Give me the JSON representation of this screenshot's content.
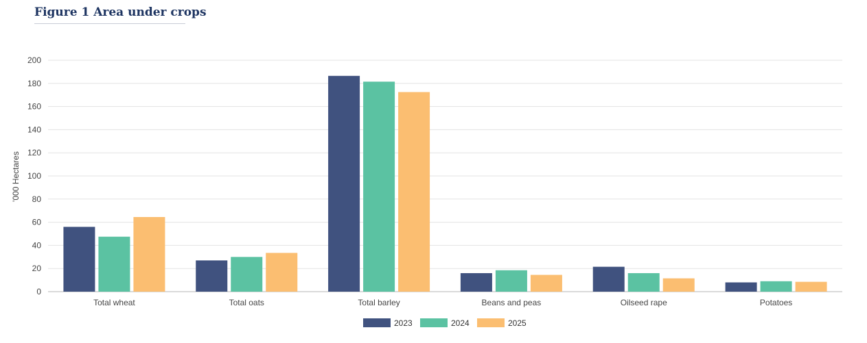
{
  "figure_title": "Figure 1 Area under crops",
  "colors": {
    "2023": "#40527f",
    "2024": "#5bc2a2",
    "2025": "#fbbe71",
    "grid": "#e3e3e3",
    "axis": "#b5b5b5"
  },
  "chart_data": {
    "type": "bar",
    "title": "",
    "xlabel": "",
    "ylabel": "'000 Hectares",
    "ylim": [
      0,
      200
    ],
    "yticks": [
      0,
      20,
      40,
      60,
      80,
      100,
      120,
      140,
      160,
      180,
      200
    ],
    "grid": true,
    "legend_position": "bottom",
    "categories": [
      "Total wheat",
      "Total oats",
      "Total barley",
      "Beans and peas",
      "Oilseed rape",
      "Potatoes"
    ],
    "series": [
      {
        "name": "2023",
        "color": "#40527f",
        "values": [
          56,
          27,
          186.5,
          16,
          21.5,
          8
        ]
      },
      {
        "name": "2024",
        "color": "#5bc2a2",
        "values": [
          47.5,
          30,
          181.5,
          18.5,
          16,
          9
        ]
      },
      {
        "name": "2025",
        "color": "#fbbe71",
        "values": [
          64.5,
          33.5,
          172.5,
          14.5,
          11.5,
          8.5
        ]
      }
    ]
  }
}
